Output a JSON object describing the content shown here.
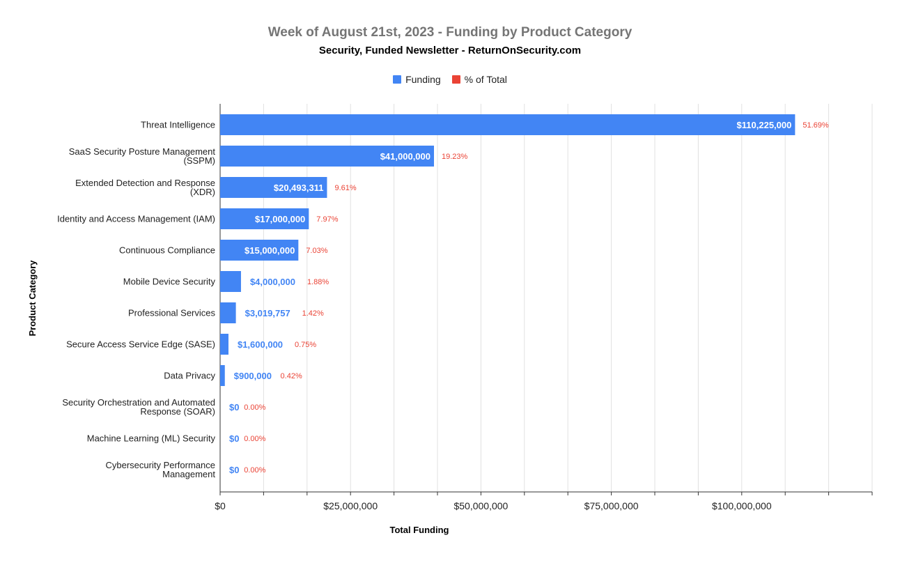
{
  "colors": {
    "funding": "#4285f4",
    "percent": "#ea4335",
    "grid": "#e0e0e0",
    "axis": "#333333",
    "inside_label": "#ffffff"
  },
  "chart_data": {
    "type": "bar",
    "orientation": "horizontal",
    "title": "Week of August 21st, 2023 - Funding by Product Category",
    "subtitle": "Security, Funded Newsletter - ReturnOnSecurity.com",
    "xlabel": "Total Funding",
    "ylabel": "Product Category",
    "legend_position": "top",
    "grid": true,
    "xlim": [
      0,
      125000000
    ],
    "x_ticks": [
      0,
      25000000,
      50000000,
      75000000,
      100000000
    ],
    "x_tick_labels": [
      "$0",
      "$25,000,000",
      "$50,000,000",
      "$75,000,000",
      "$100,000,000"
    ],
    "categories": [
      [
        "Threat Intelligence"
      ],
      [
        "SaaS Security Posture Management",
        "(SSPM)"
      ],
      [
        "Extended Detection and Response",
        "(XDR)"
      ],
      [
        "Identity and Access Management (IAM)"
      ],
      [
        "Continuous Compliance"
      ],
      [
        "Mobile Device Security"
      ],
      [
        "Professional Services"
      ],
      [
        "Secure Access Service Edge (SASE)"
      ],
      [
        "Data Privacy"
      ],
      [
        "Security Orchestration and Automated",
        "Response (SOAR)"
      ],
      [
        "Machine Learning (ML) Security"
      ],
      [
        "Cybersecurity Performance",
        "Management"
      ]
    ],
    "series": [
      {
        "name": "Funding",
        "values": [
          110225000,
          41000000,
          20493311,
          17000000,
          15000000,
          4000000,
          3019757,
          1600000,
          900000,
          0,
          0,
          0
        ],
        "labels": [
          "$110,225,000",
          "$41,000,000",
          "$20,493,311",
          "$17,000,000",
          "$15,000,000",
          "$4,000,000",
          "$3,019,757",
          "$1,600,000",
          "$900,000",
          "$0",
          "$0",
          "$0"
        ]
      },
      {
        "name": "% of Total",
        "values": [
          51.69,
          19.23,
          9.61,
          7.97,
          7.03,
          1.88,
          1.42,
          0.75,
          0.42,
          0.0,
          0.0,
          0.0
        ],
        "labels": [
          "51.69%",
          "19.23%",
          "9.61%",
          "7.97%",
          "7.03%",
          "1.88%",
          "1.42%",
          "0.75%",
          "0.42%",
          "0.00%",
          "0.00%",
          "0.00%"
        ]
      }
    ]
  }
}
